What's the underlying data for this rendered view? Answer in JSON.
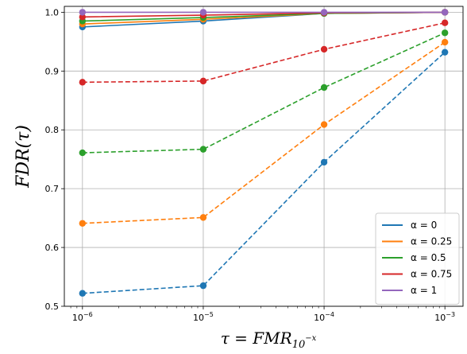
{
  "chart_data": {
    "type": "line",
    "title": "",
    "xlabel": "τ = FMR",
    "xlabel_subscript": "10",
    "xlabel_superscript": "−x",
    "ylabel": "FDR(τ)",
    "x_scale": "log",
    "x": [
      1e-06,
      1e-05,
      0.0001,
      0.001
    ],
    "x_tick_labels": [
      {
        "base": "10",
        "exp": "−6"
      },
      {
        "base": "10",
        "exp": "−5"
      },
      {
        "base": "10",
        "exp": "−4"
      },
      {
        "base": "10",
        "exp": "−3"
      }
    ],
    "ylim": [
      0.5,
      1.01
    ],
    "y_ticks": [
      0.5,
      0.6,
      0.7,
      0.8,
      0.9,
      1.0
    ],
    "y_tick_labels": [
      "0.5",
      "0.6",
      "0.7",
      "0.8",
      "0.9",
      "1.0"
    ],
    "grid": true,
    "legend_position": "bottom-right",
    "series": [
      {
        "name": "α = 0",
        "color": "#1f77b4",
        "style": "solid",
        "values": [
          0.975,
          0.985,
          0.998,
          1.0
        ]
      },
      {
        "name": "α = 0.25",
        "color": "#ff7f0e",
        "style": "solid",
        "values": [
          0.98,
          0.988,
          0.998,
          1.0
        ]
      },
      {
        "name": "α = 0.5",
        "color": "#2ca02c",
        "style": "solid",
        "values": [
          0.985,
          0.991,
          0.998,
          1.0
        ]
      },
      {
        "name": "α = 0.75",
        "color": "#d62728",
        "style": "solid",
        "values": [
          0.992,
          0.995,
          0.999,
          1.0
        ]
      },
      {
        "name": "α = 1",
        "color": "#9467bd",
        "style": "solid",
        "values": [
          1.0,
          1.0,
          1.0,
          1.0
        ]
      },
      {
        "name": "",
        "color": "#1f77b4",
        "style": "dashed",
        "values": [
          0.522,
          0.535,
          0.745,
          0.932
        ]
      },
      {
        "name": "",
        "color": "#ff7f0e",
        "style": "dashed",
        "values": [
          0.641,
          0.651,
          0.809,
          0.949
        ]
      },
      {
        "name": "",
        "color": "#2ca02c",
        "style": "dashed",
        "values": [
          0.761,
          0.767,
          0.872,
          0.965
        ]
      },
      {
        "name": "",
        "color": "#d62728",
        "style": "dashed",
        "values": [
          0.881,
          0.883,
          0.937,
          0.982
        ]
      }
    ]
  }
}
